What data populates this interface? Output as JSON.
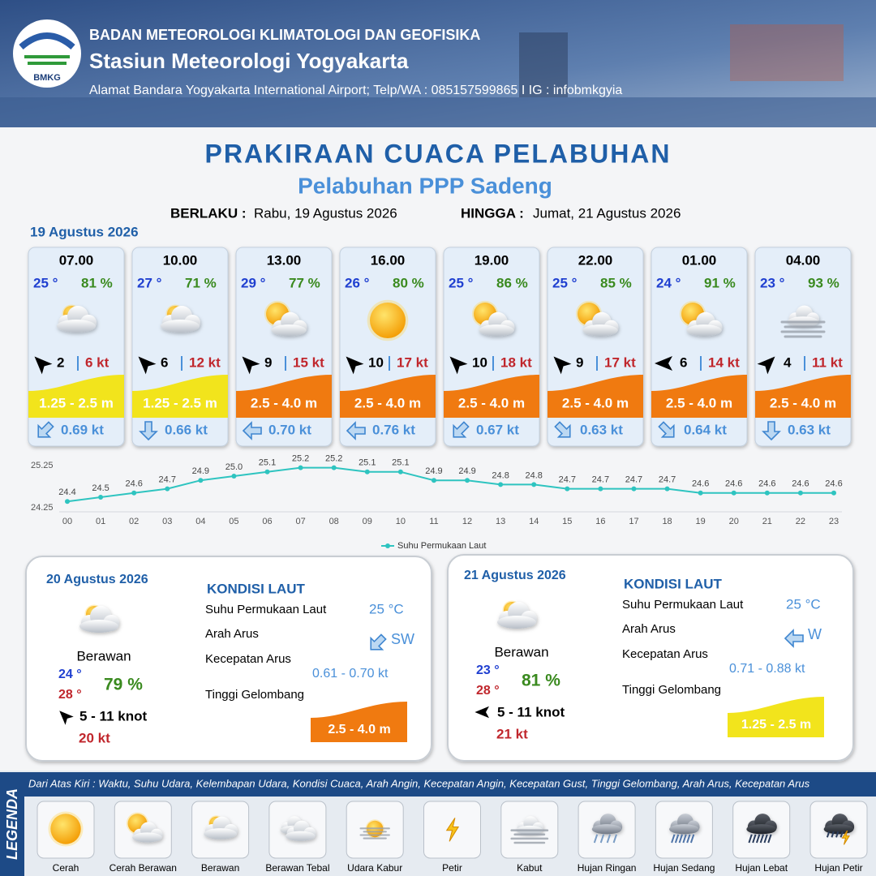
{
  "header": {
    "agency": "BADAN METEOROLOGI KLIMATOLOGI DAN GEOFISIKA",
    "station": "Stasiun Meteorologi Yogyakarta",
    "address": "Alamat Bandara Yogyakarta International Airport; Telp/WA : 085157599865 I IG : infobmkgyia",
    "logo": "BMKG"
  },
  "title": "PRAKIRAAN CUACA PELABUHAN",
  "subtitle": "Pelabuhan PPP Sadeng",
  "validity": {
    "from_label": "BERLAKU :",
    "from": "Rabu, 19 Agustus 2026",
    "until_label": "HINGGA :",
    "until": "Jumat, 21 Agustus 2026"
  },
  "day1_date": "19 Agustus 2026",
  "forecasts": [
    {
      "time": "07.00",
      "temp": "25 °",
      "humidity": "81 %",
      "wind": "2",
      "gust": "6 kt",
      "wave": "1.25 - 2.5 m",
      "current": "0.69 kt"
    },
    {
      "time": "10.00",
      "temp": "27 °",
      "humidity": "71 %",
      "wind": "6",
      "gust": "12 kt",
      "wave": "1.25 - 2.5 m",
      "current": "0.66 kt"
    },
    {
      "time": "13.00",
      "temp": "29 °",
      "humidity": "77 %",
      "wind": "9",
      "gust": "15 kt",
      "wave": "2.5 - 4.0 m",
      "current": "0.70 kt"
    },
    {
      "time": "16.00",
      "temp": "26 °",
      "humidity": "80 %",
      "wind": "10",
      "gust": "17 kt",
      "wave": "2.5 - 4.0 m",
      "current": "0.76 kt"
    },
    {
      "time": "19.00",
      "temp": "25 °",
      "humidity": "86 %",
      "wind": "10",
      "gust": "18 kt",
      "wave": "2.5 - 4.0 m",
      "current": "0.67 kt"
    },
    {
      "time": "22.00",
      "temp": "25 °",
      "humidity": "85 %",
      "wind": "9",
      "gust": "17 kt",
      "wave": "2.5 - 4.0 m",
      "current": "0.63 kt"
    },
    {
      "time": "01.00",
      "temp": "24 °",
      "humidity": "91 %",
      "wind": "6",
      "gust": "14 kt",
      "wave": "2.5 - 4.0 m",
      "current": "0.64 kt"
    },
    {
      "time": "04.00",
      "temp": "23 °",
      "humidity": "93 %",
      "wind": "4",
      "gust": "11 kt",
      "wave": "2.5 - 4.0 m",
      "current": "0.63 kt"
    }
  ],
  "chart_data": {
    "type": "line",
    "categories": [
      "00",
      "01",
      "02",
      "03",
      "04",
      "05",
      "06",
      "07",
      "08",
      "09",
      "10",
      "11",
      "12",
      "13",
      "14",
      "15",
      "16",
      "17",
      "18",
      "19",
      "20",
      "21",
      "22",
      "23"
    ],
    "series": [
      {
        "name": "Suhu Permukaan Laut",
        "color": "#2ec4c0",
        "values": [
          24.4,
          24.5,
          24.6,
          24.7,
          24.9,
          25.0,
          25.1,
          25.2,
          25.2,
          25.1,
          25.1,
          24.9,
          24.9,
          24.8,
          24.8,
          24.7,
          24.7,
          24.7,
          24.7,
          24.6,
          24.6,
          24.6,
          24.6,
          24.6
        ],
        "value_labels": [
          "24.4",
          "24.5",
          "24.6",
          "24.7",
          "24.9",
          "25.0",
          "25.1",
          "25.2",
          "25.2",
          "25.1",
          "25.1",
          "24.9",
          "24.9",
          "24.8",
          "24.8",
          "24.7",
          "24.7",
          "24.7",
          "24.7",
          "24.6",
          "24.6",
          "24.6",
          "24.6",
          "24.6"
        ]
      }
    ],
    "ylim": [
      24.25,
      25.25
    ],
    "yticks": [
      24.25,
      25.25
    ],
    "legend": "bottom"
  },
  "outlook": [
    {
      "date": "20 Agustus 2026",
      "condition": "Berawan",
      "temp_min": "24 °",
      "temp_max": "28 °",
      "humidity": "79 %",
      "wind": "5  - 11 knot",
      "gust": "20 kt",
      "sea_title": "KONDISI LAUT",
      "sst_label": "Suhu Permukaan Laut",
      "sst": "25 °C",
      "dir_label": "Arah Arus",
      "dir": "SW",
      "speed_label": "Kecepatan Arus",
      "speed": "0.61 - 0.70 kt",
      "wave_label": "Tinggi Gelombang",
      "wave": "2.5 - 4.0 m"
    },
    {
      "date": "21 Agustus 2026",
      "condition": "Berawan",
      "temp_min": "23 °",
      "temp_max": "28 °",
      "humidity": "81 %",
      "wind": "5  - 11 knot",
      "gust": "21 kt",
      "sea_title": "KONDISI LAUT",
      "sst_label": "Suhu Permukaan Laut",
      "sst": "25 °C",
      "dir_label": "Arah Arus",
      "dir": "W",
      "speed_label": "Kecepatan Arus",
      "speed": "0.71 - 0.88 kt",
      "wave_label": "Tinggi Gelombang",
      "wave": "1.25 - 2.5 m"
    }
  ],
  "legend": {
    "title": "LEGENDA",
    "description": "Dari Atas Kiri : Waktu, Suhu Udara, Kelembapan Udara, Kondisi Cuaca, Arah Angin, Kecepatan Angin, Kecepatan Gust, Tinggi Gelombang, Arah Arus, Kecepatan Arus",
    "items": [
      "Cerah",
      "Cerah Berawan",
      "Berawan",
      "Berawan Tebal",
      "Udara Kabur",
      "Petir",
      "Kabut",
      "Hujan Ringan",
      "Hujan Sedang",
      "Hujan Lebat",
      "Hujan Petir"
    ]
  }
}
